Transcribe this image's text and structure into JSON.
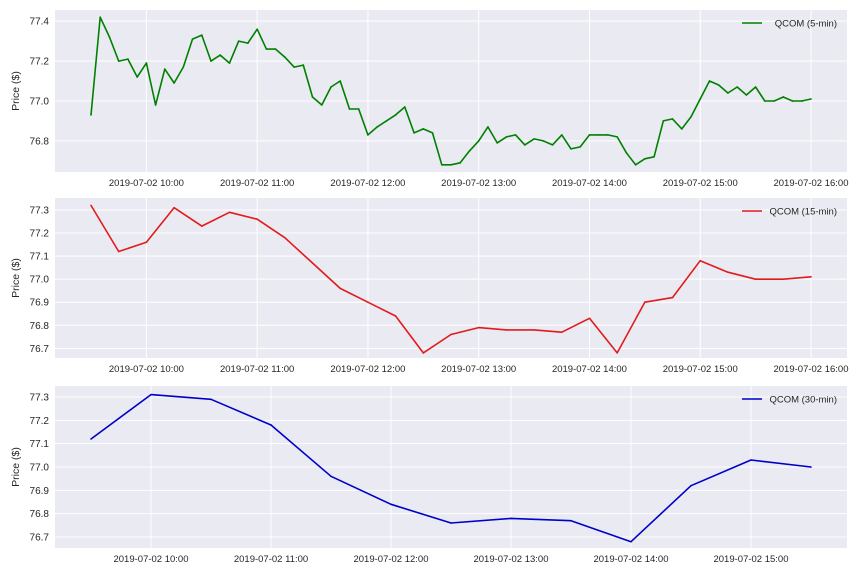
{
  "chart_data": [
    {
      "type": "line",
      "ylabel": "Price ($)",
      "xlabel": "",
      "grid": true,
      "legend_placement": "top-right",
      "xlim": [
        "2019-07-02 09:10:30",
        "2019-07-02 16:19:30"
      ],
      "ylim": [
        76.644,
        77.456
      ],
      "yticks": [
        "76.8",
        "77.0",
        "77.2",
        "77.4"
      ],
      "xticks": [
        "2019-07-02 10:00",
        "2019-07-02 11:00",
        "2019-07-02 12:00",
        "2019-07-02 13:00",
        "2019-07-02 14:00",
        "2019-07-02 15:00",
        "2019-07-02 16:00"
      ],
      "series": [
        {
          "name": "QCOM (5-min)",
          "color": "#008000",
          "x": [
            "09:30",
            "09:35",
            "09:40",
            "09:45",
            "09:50",
            "09:55",
            "10:00",
            "10:05",
            "10:10",
            "10:15",
            "10:20",
            "10:25",
            "10:30",
            "10:35",
            "10:40",
            "10:45",
            "10:50",
            "10:55",
            "11:00",
            "11:05",
            "11:10",
            "11:15",
            "11:20",
            "11:25",
            "11:30",
            "11:35",
            "11:40",
            "11:45",
            "11:50",
            "11:55",
            "12:00",
            "12:05",
            "12:10",
            "12:15",
            "12:20",
            "12:25",
            "12:30",
            "12:35",
            "12:40",
            "12:45",
            "12:50",
            "12:55",
            "13:00",
            "13:05",
            "13:10",
            "13:15",
            "13:20",
            "13:25",
            "13:30",
            "13:35",
            "13:40",
            "13:45",
            "13:50",
            "13:55",
            "14:00",
            "14:05",
            "14:10",
            "14:15",
            "14:20",
            "14:25",
            "14:30",
            "14:35",
            "14:40",
            "14:45",
            "14:50",
            "14:55",
            "15:00",
            "15:05",
            "15:10",
            "15:15",
            "15:20",
            "15:25",
            "15:30",
            "15:35",
            "15:40",
            "15:45",
            "15:50",
            "15:55",
            "16:00"
          ],
          "y": [
            76.93,
            77.42,
            77.32,
            77.2,
            77.21,
            77.12,
            77.19,
            76.98,
            77.16,
            77.09,
            77.17,
            77.31,
            77.33,
            77.2,
            77.23,
            77.19,
            77.3,
            77.29,
            77.36,
            77.26,
            77.26,
            77.22,
            77.17,
            77.18,
            77.02,
            76.98,
            77.07,
            77.1,
            76.96,
            76.96,
            76.83,
            76.87,
            76.9,
            76.93,
            76.97,
            76.84,
            76.86,
            76.84,
            76.68,
            76.68,
            76.69,
            76.75,
            76.8,
            76.87,
            76.79,
            76.82,
            76.83,
            76.78,
            76.81,
            76.8,
            76.78,
            76.83,
            76.76,
            76.77,
            76.83,
            76.83,
            76.83,
            76.82,
            76.74,
            76.68,
            76.71,
            76.72,
            76.9,
            76.91,
            76.86,
            76.92,
            77.01,
            77.1,
            77.08,
            77.04,
            77.07,
            77.03,
            77.07,
            77.0,
            77.0,
            77.02,
            77.0,
            77.0,
            77.01
          ]
        }
      ]
    },
    {
      "type": "line",
      "ylabel": "Price ($)",
      "xlabel": "",
      "grid": true,
      "legend_placement": "top-right",
      "xlim": [
        "2019-07-02 09:10:30",
        "2019-07-02 16:19:30"
      ],
      "ylim": [
        76.658,
        77.352
      ],
      "yticks": [
        "76.7",
        "76.8",
        "76.9",
        "77.0",
        "77.1",
        "77.2",
        "77.3"
      ],
      "xticks": [
        "2019-07-02 10:00",
        "2019-07-02 11:00",
        "2019-07-02 12:00",
        "2019-07-02 13:00",
        "2019-07-02 14:00",
        "2019-07-02 15:00",
        "2019-07-02 16:00"
      ],
      "series": [
        {
          "name": "QCOM (15-min)",
          "color": "#e31a1c",
          "x": [
            "09:30",
            "09:45",
            "10:00",
            "10:15",
            "10:30",
            "10:45",
            "11:00",
            "11:15",
            "11:30",
            "11:45",
            "12:00",
            "12:15",
            "12:30",
            "12:45",
            "13:00",
            "13:15",
            "13:30",
            "13:45",
            "14:00",
            "14:15",
            "14:30",
            "14:45",
            "15:00",
            "15:15",
            "15:30",
            "15:45",
            "16:00"
          ],
          "y": [
            77.32,
            77.12,
            77.16,
            77.31,
            77.23,
            77.29,
            77.26,
            77.18,
            77.07,
            76.96,
            76.9,
            76.84,
            76.68,
            76.76,
            76.79,
            76.78,
            76.78,
            76.77,
            76.83,
            76.68,
            76.9,
            76.92,
            77.08,
            77.03,
            77.0,
            77.0,
            77.01
          ]
        }
      ]
    },
    {
      "type": "line",
      "ylabel": "Price ($)",
      "xlabel": "",
      "grid": true,
      "legend_placement": "top-right",
      "xlim": [
        "2019-07-02 09:12",
        "2019-07-02 15:48"
      ],
      "ylim": [
        76.653,
        77.347
      ],
      "yticks": [
        "76.7",
        "76.8",
        "76.9",
        "77.0",
        "77.1",
        "77.2",
        "77.3"
      ],
      "xticks": [
        "2019-07-02 10:00",
        "2019-07-02 11:00",
        "2019-07-02 12:00",
        "2019-07-02 13:00",
        "2019-07-02 14:00",
        "2019-07-02 15:00"
      ],
      "series": [
        {
          "name": "QCOM (30-min)",
          "color": "#0000cc",
          "x": [
            "09:30",
            "10:00",
            "10:30",
            "11:00",
            "11:30",
            "12:00",
            "12:30",
            "13:00",
            "13:30",
            "14:00",
            "14:30",
            "15:00",
            "15:30"
          ],
          "y": [
            77.12,
            77.31,
            77.29,
            77.18,
            76.96,
            76.84,
            76.76,
            76.78,
            76.77,
            76.68,
            76.92,
            77.03,
            77.0
          ]
        }
      ]
    }
  ]
}
